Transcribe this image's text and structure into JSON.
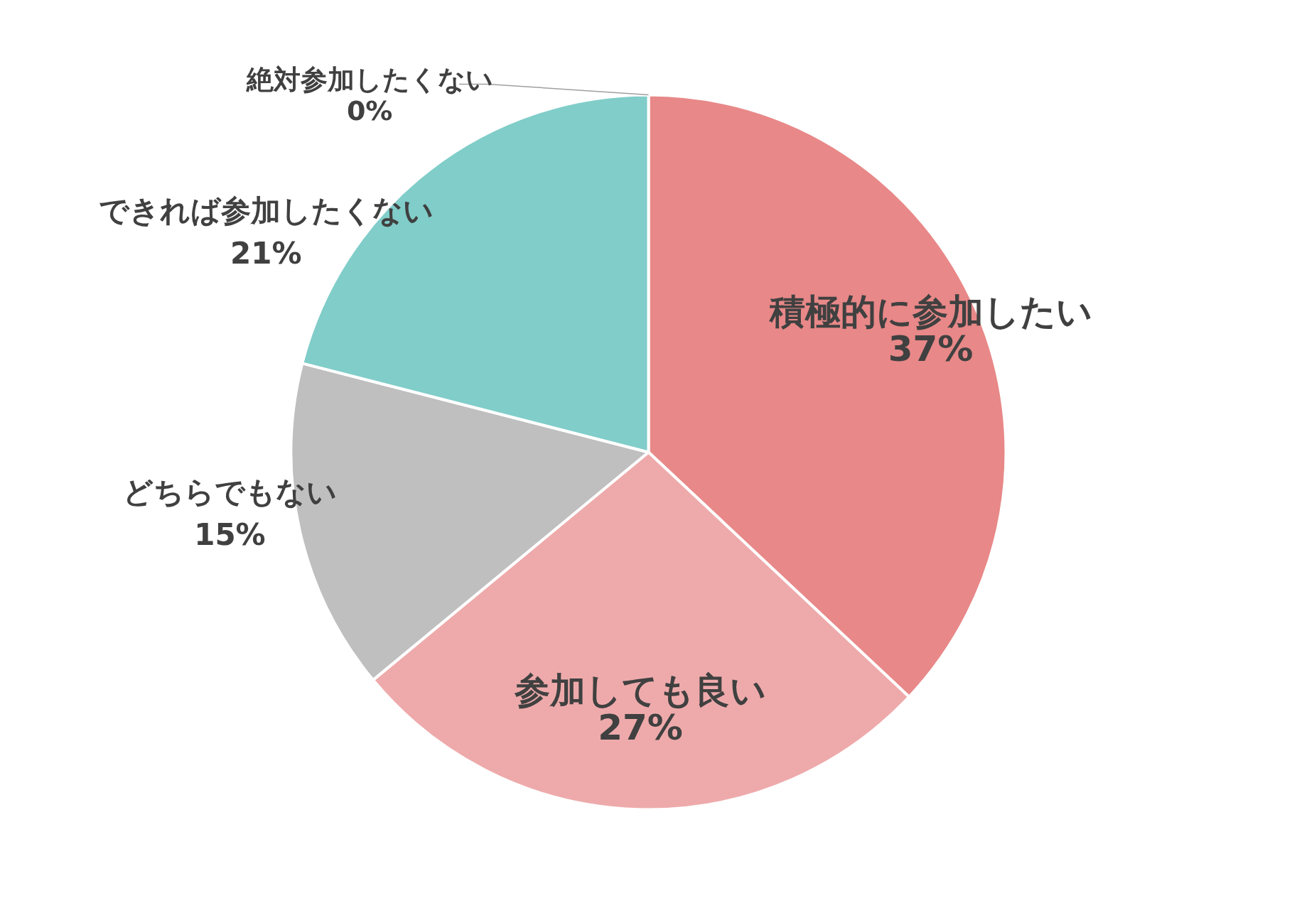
{
  "chart_data": {
    "type": "pie",
    "categories": [
      "積極的に参加したい",
      "参加しても良い",
      "どちらでもない",
      "できれば参加したくない",
      "絶対参加したくない"
    ],
    "values": [
      37,
      27,
      15,
      21,
      0
    ],
    "value_labels": [
      "37%",
      "27%",
      "15%",
      "21%",
      "0%"
    ],
    "colors": [
      "#e88888",
      "#eeaaab",
      "#bfbfbf",
      "#80cdc9",
      "#f4b183"
    ]
  }
}
